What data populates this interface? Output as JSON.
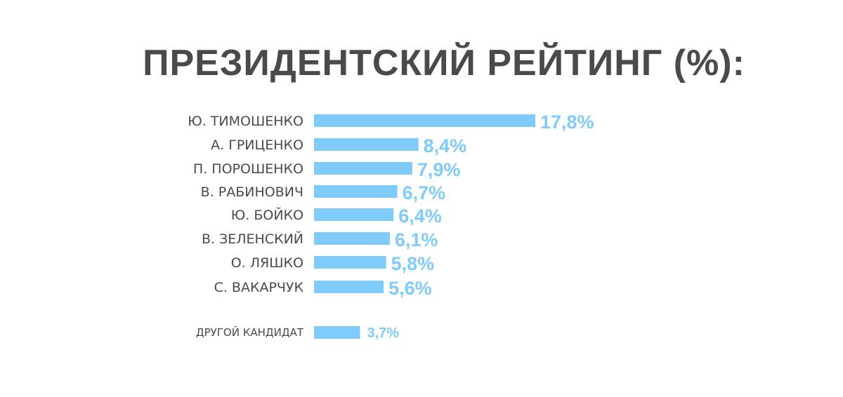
{
  "chart_data": {
    "type": "bar",
    "orientation": "horizontal",
    "title": "ПРЕЗИДЕНТСКИЙ РЕЙТИНГ (%):",
    "xlabel": "",
    "ylabel": "",
    "unit": "%",
    "categories": [
      "Ю. ТИМОШЕНКО",
      "А. ГРИЦЕНКО",
      "П. ПОРОШЕНКО",
      "В. РАБИНОВИЧ",
      "Ю. БОЙКО",
      "В. ЗЕЛЕНСКИЙ",
      "О. ЛЯШКО",
      "С. ВАКАРЧУК",
      "ДРУГОЙ КАНДИДАТ"
    ],
    "values": [
      17.8,
      8.4,
      7.9,
      6.7,
      6.4,
      6.1,
      5.8,
      5.6,
      3.7
    ],
    "value_labels": [
      "17,8%",
      "8,4%",
      "7,9%",
      "6,7%",
      "6,4%",
      "6,1%",
      "5,8%",
      "5,6%",
      "3,7%"
    ],
    "colors": {
      "bar": "#7fcbfb",
      "value_text": "#7fcbfb",
      "label_text": "#4a4a4a",
      "title_text": "#4a4a4a"
    },
    "grid": false,
    "legend": "none"
  }
}
